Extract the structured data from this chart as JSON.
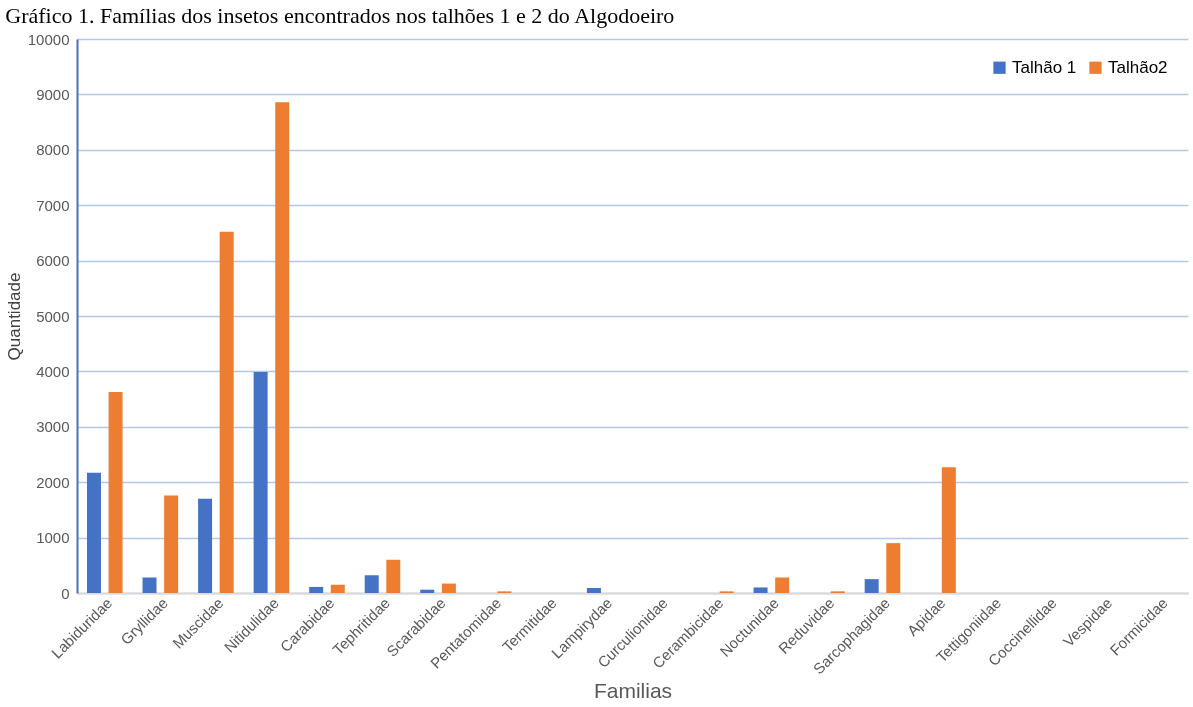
{
  "chart_data": {
    "type": "bar",
    "title": "Gráfico 1. Famílias dos insetos encontrados nos talhões 1 e 2 do Algodoeiro",
    "xlabel": "Familias",
    "ylabel": "Quantidade",
    "categories": [
      "Labiduridae",
      "Gryllidae",
      "Muscidae",
      "Nitidulidae",
      "Carabidae",
      "Tephritidae",
      "Scarabidae",
      "Pentatomidae",
      "Termitidae",
      "Lampirydae",
      "Curculionidae",
      "Cerambicidae",
      "Noctunidae",
      "Reduvidae",
      "Sarcophagidae",
      "Apidae",
      "Tettigoniidae",
      "Coccinellidae",
      "Vespidae",
      "Formicidae"
    ],
    "series": [
      {
        "name": "Talhão 1",
        "color": "#4472c4",
        "values": [
          2170,
          280,
          1700,
          3990,
          110,
          320,
          60,
          0,
          0,
          90,
          0,
          0,
          100,
          0,
          250,
          0,
          0,
          0,
          0,
          0
        ]
      },
      {
        "name": "Talhão2",
        "color": "#ed7d31",
        "values": [
          3630,
          1760,
          6520,
          8860,
          150,
          600,
          170,
          30,
          0,
          0,
          0,
          30,
          280,
          30,
          900,
          2270,
          0,
          0,
          0,
          0
        ]
      }
    ],
    "ylim": [
      0,
      10000
    ],
    "yticks": [
      0,
      1000,
      2000,
      3000,
      4000,
      5000,
      6000,
      7000,
      8000,
      9000,
      10000
    ],
    "grid": "y",
    "legend": "top right"
  }
}
